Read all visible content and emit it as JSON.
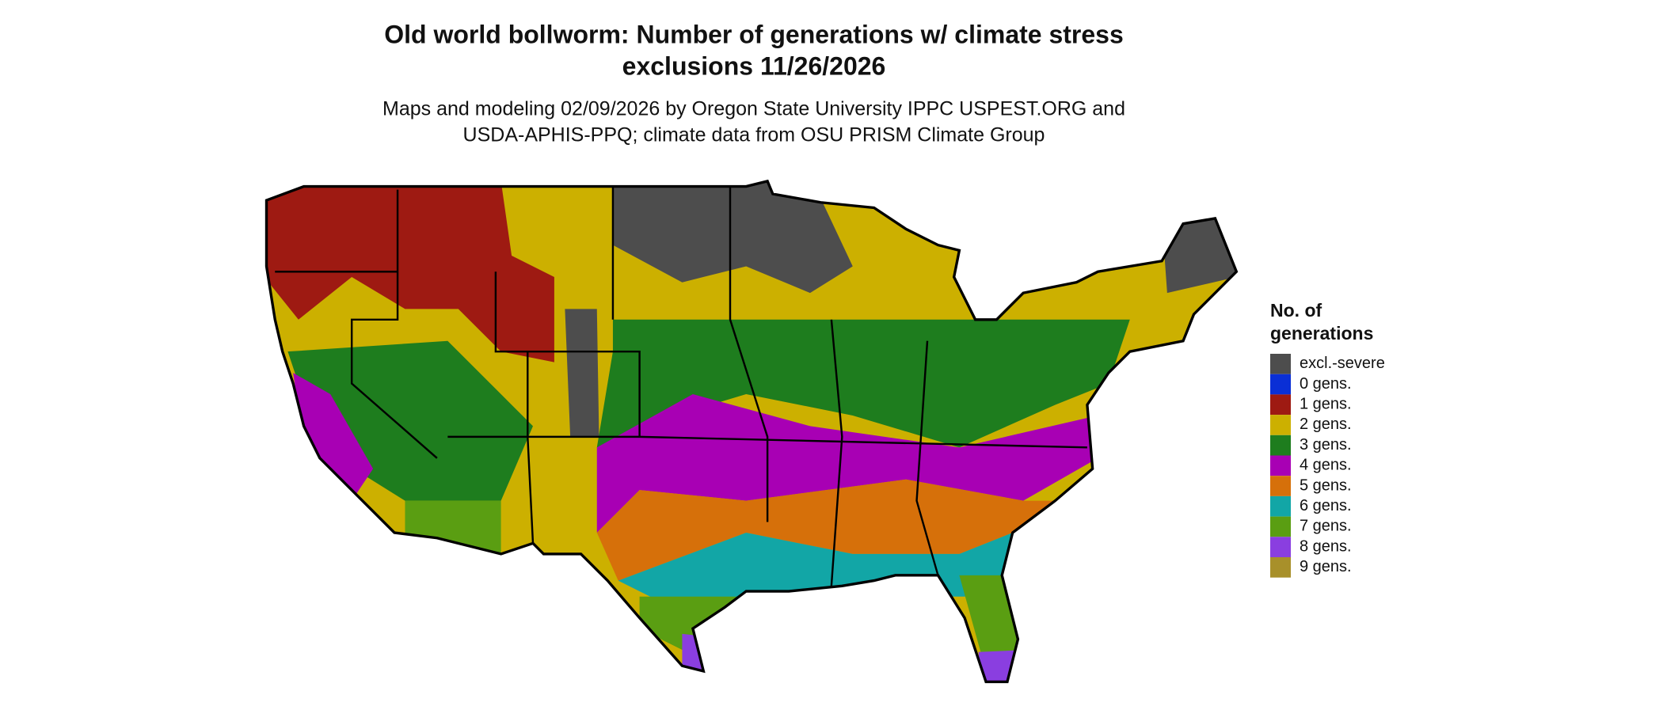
{
  "header": {
    "title_lines": [
      "Old world bollworm: Number of generations w/ climate stress",
      "exclusions 11/26/2026"
    ],
    "subtitle_lines": [
      "Maps and modeling 02/09/2026 by Oregon State University IPPC USPEST.ORG and",
      "USDA-APHIS-PPQ; climate data from OSU PRISM Climate Group"
    ]
  },
  "legend": {
    "title_lines": [
      "No. of",
      "generations"
    ],
    "entries": [
      {
        "label": "excl.-severe",
        "color": "#4d4d4d"
      },
      {
        "label": "0 gens.",
        "color": "#0a2fd6"
      },
      {
        "label": "1 gens.",
        "color": "#9e1a12"
      },
      {
        "label": "2 gens.",
        "color": "#ccb000"
      },
      {
        "label": "3 gens.",
        "color": "#1e7d1e"
      },
      {
        "label": "4 gens.",
        "color": "#a800b4"
      },
      {
        "label": "5 gens.",
        "color": "#d6700a"
      },
      {
        "label": "6 gens.",
        "color": "#12a6a6"
      },
      {
        "label": "7 gens.",
        "color": "#5a9e12"
      },
      {
        "label": "8 gens.",
        "color": "#8a3ee0"
      },
      {
        "label": "9 gens.",
        "color": "#a8902a"
      }
    ]
  }
}
